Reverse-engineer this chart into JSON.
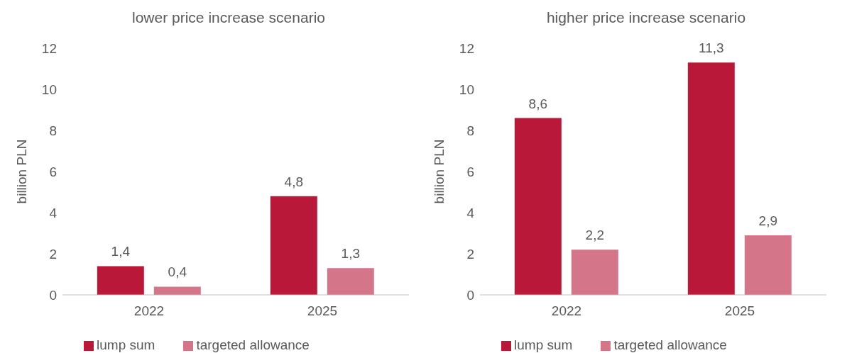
{
  "chart_data": [
    {
      "type": "bar",
      "title": "lower price increase scenario",
      "ylabel": "billion PLN",
      "categories": [
        "2022",
        "2025"
      ],
      "ylim": [
        0,
        12
      ],
      "yticks": [
        0,
        2,
        4,
        6,
        8,
        10,
        12
      ],
      "legend": "bottom",
      "series": [
        {
          "name": "lump sum",
          "color": "#b91838",
          "values": [
            1.4,
            4.8
          ],
          "value_labels": [
            "1,4",
            "4,8"
          ]
        },
        {
          "name": "targeted allowance",
          "color": "#d4758a",
          "values": [
            0.4,
            1.3
          ],
          "value_labels": [
            "0,4",
            "1,3"
          ]
        }
      ]
    },
    {
      "type": "bar",
      "title": "higher price increase scenario",
      "ylabel": "billion PLN",
      "categories": [
        "2022",
        "2025"
      ],
      "ylim": [
        0,
        12
      ],
      "yticks": [
        0,
        2,
        4,
        6,
        8,
        10,
        12
      ],
      "legend": "bottom",
      "series": [
        {
          "name": "lump sum",
          "color": "#b91838",
          "values": [
            8.6,
            11.3
          ],
          "value_labels": [
            "8,6",
            "11,3"
          ]
        },
        {
          "name": "targeted allowance",
          "color": "#d4758a",
          "values": [
            2.2,
            2.9
          ],
          "value_labels": [
            "2,2",
            "2,9"
          ]
        }
      ]
    }
  ]
}
